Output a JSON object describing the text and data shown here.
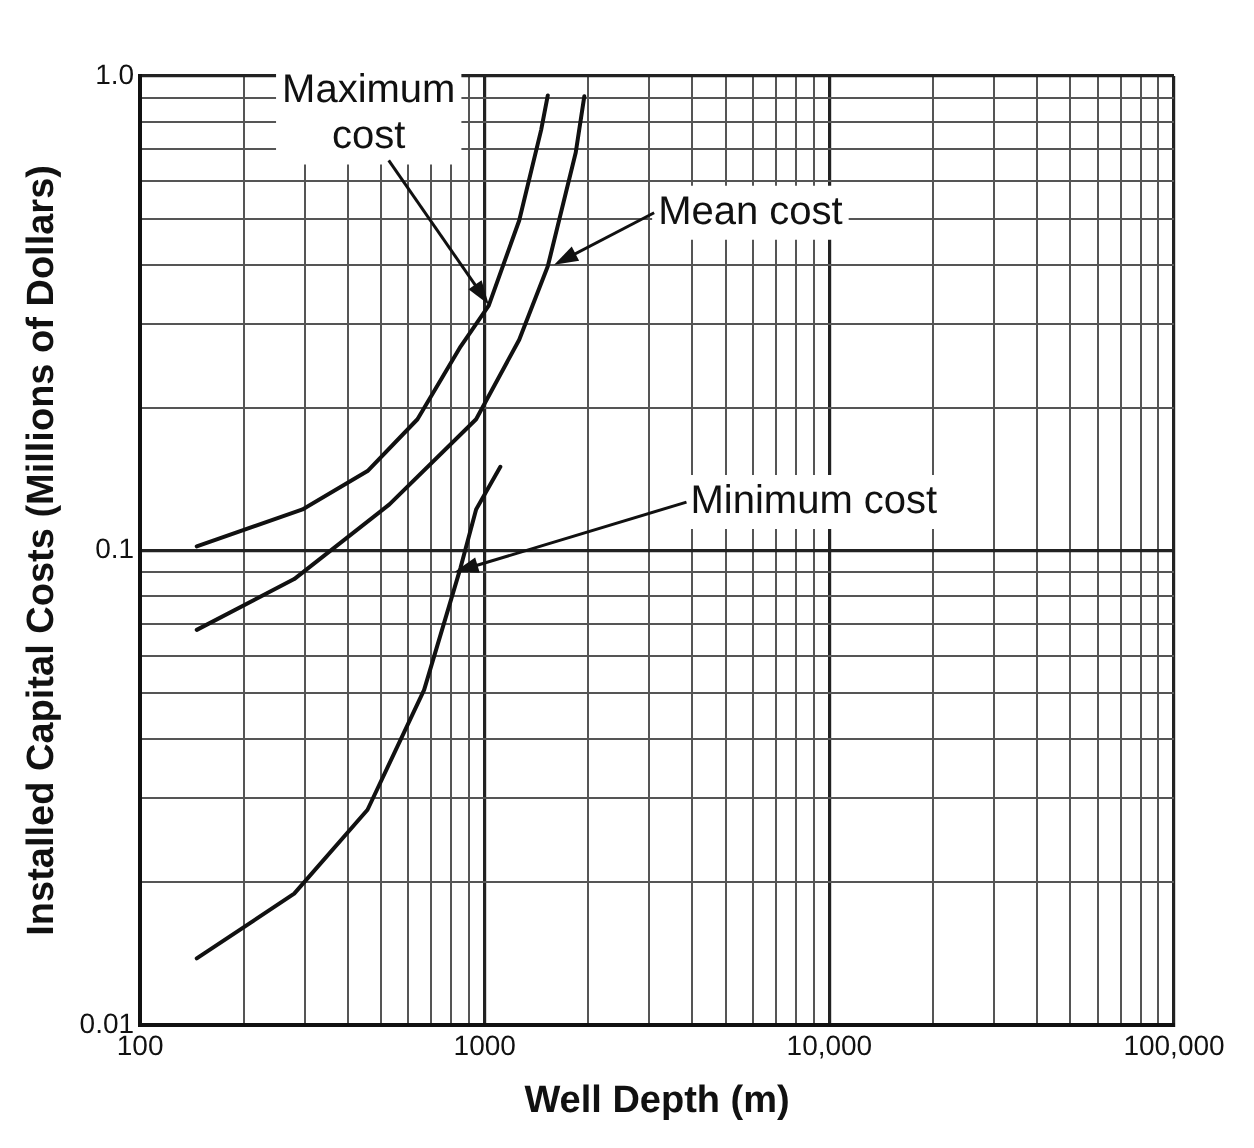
{
  "chart_data": {
    "type": "line",
    "xlabel": "Well Depth (m)",
    "ylabel": "Installed Capital Costs (Millions of Dollars)",
    "log": "xy",
    "grid": true,
    "legend": false,
    "marker": "none",
    "line_style": "solid",
    "xlim": [
      100,
      100000
    ],
    "ylim": [
      0.01,
      1
    ],
    "xticks": [
      100,
      {
        "value": 200,
        "label": null
      },
      {
        "value": 300,
        "label": null
      },
      {
        "value": 400,
        "label": null
      },
      {
        "value": 500,
        "label": null
      },
      {
        "value": 600,
        "label": null
      },
      {
        "value": 700,
        "label": null
      },
      {
        "value": 800,
        "label": null
      },
      {
        "value": 900,
        "label": null
      },
      1000,
      {
        "value": 2000,
        "label": null
      },
      {
        "value": 3000,
        "label": null
      },
      {
        "value": 4000,
        "label": null
      },
      {
        "value": 5000,
        "label": null
      },
      {
        "value": 6000,
        "label": null
      },
      {
        "value": 7000,
        "label": null
      },
      {
        "value": 8000,
        "label": null
      },
      {
        "value": 9000,
        "label": null
      },
      {
        "value": 10000,
        "label": "10,000"
      },
      {
        "value": 20000,
        "label": null
      },
      {
        "value": 30000,
        "label": null
      },
      {
        "value": 40000,
        "label": null
      },
      {
        "value": 50000,
        "label": null
      },
      {
        "value": 60000,
        "label": null
      },
      {
        "value": 70000,
        "label": null
      },
      {
        "value": 80000,
        "label": null
      },
      {
        "value": 90000,
        "label": null
      },
      {
        "value": 100000,
        "label": "100,000"
      }
    ],
    "yticks": [
      0.01,
      {
        "value": 0.02,
        "label": null
      },
      {
        "value": 0.03,
        "label": null
      },
      {
        "value": 0.04,
        "label": null
      },
      {
        "value": 0.05,
        "label": null
      },
      {
        "value": 0.06,
        "label": null
      },
      {
        "value": 0.07,
        "label": null
      },
      {
        "value": 0.08,
        "label": null
      },
      {
        "value": 0.09,
        "label": null
      },
      0.1,
      {
        "value": 0.2,
        "label": null
      },
      {
        "value": 0.3,
        "label": null
      },
      {
        "value": 0.4,
        "label": null
      },
      {
        "value": 0.5,
        "label": null
      },
      {
        "value": 0.6,
        "label": null
      },
      {
        "value": 0.7,
        "label": null
      },
      {
        "value": 0.8,
        "label": null
      },
      {
        "value": 0.9,
        "label": null
      },
      {
        "value": 1,
        "label": "1.0"
      }
    ],
    "series": [
      {
        "color": "#111111",
        "x": [
          146,
          296,
          457,
          638,
          851,
          1027,
          1259,
          1458,
          1524
        ],
        "values": [
          0.102,
          0.122,
          0.147,
          0.189,
          0.269,
          0.328,
          0.496,
          0.77,
          0.91
        ]
      },
      {
        "color": "#111111",
        "x": [
          146,
          280,
          529,
          944,
          1259,
          1524,
          1837,
          1945
        ],
        "values": [
          0.068,
          0.087,
          0.125,
          0.189,
          0.278,
          0.397,
          0.69,
          0.906
        ]
      },
      {
        "color": "#111111",
        "x": [
          146,
          280,
          457,
          667,
          851,
          944,
          1110
        ],
        "values": [
          0.0138,
          0.0189,
          0.0284,
          0.0508,
          0.092,
          0.122,
          0.15
        ]
      }
    ],
    "annotations": [
      {
        "text": "Maximum\ncost",
        "x": 1027,
        "y": 0.33
      },
      {
        "text": "Mean cost",
        "x": 1590,
        "y": 0.4
      },
      {
        "text": "Minimum cost",
        "x": 817,
        "y": 0.09
      }
    ]
  }
}
